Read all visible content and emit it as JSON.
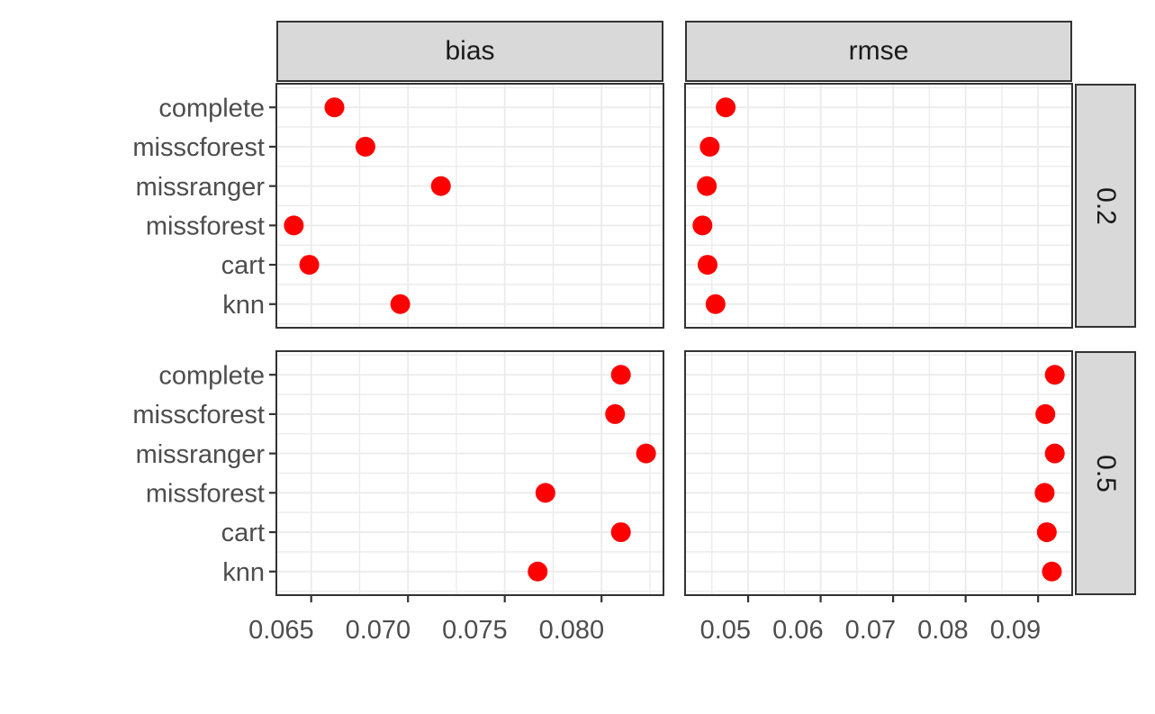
{
  "colors": {
    "point": "#FF0000",
    "strip_background": "#D9D9D9",
    "strip_text": "#1A1A1A",
    "panel_border": "#333333",
    "panel_background": "#FFFFFF",
    "gridline": "#EBEBEB",
    "axis_text": "#4D4D4D",
    "tick_mark": "#333333",
    "background": "#FFFFFF"
  },
  "chart_data": {
    "type": "scatter",
    "title": "",
    "legend": "none",
    "grid": "major+minor",
    "point_color": "#FF0000",
    "facet_cols": [
      "bias",
      "rmse"
    ],
    "facet_rows": [
      "0.2",
      "0.5"
    ],
    "categories": [
      "complete",
      "misscforest",
      "missranger",
      "missforest",
      "cart",
      "knn"
    ],
    "x_axes": [
      {
        "facet": "bias",
        "range": [
          0.0632,
          0.0832
        ],
        "ticks": [
          0.065,
          0.07,
          0.075,
          0.08
        ],
        "tick_labels": [
          "0.065",
          "0.070",
          "0.075",
          "0.080"
        ],
        "minor_breaks": [
          0.0675,
          0.0725,
          0.0775,
          0.0825
        ]
      },
      {
        "facet": "rmse",
        "range": [
          0.0413,
          0.0947
        ],
        "ticks": [
          0.05,
          0.06,
          0.07,
          0.08,
          0.09
        ],
        "tick_labels": [
          "0.05",
          "0.06",
          "0.07",
          "0.08",
          "0.09"
        ],
        "minor_breaks": [
          0.045,
          0.055,
          0.065,
          0.075,
          0.085
        ]
      }
    ],
    "panels": [
      {
        "facet_col": "bias",
        "facet_row": "0.2",
        "values": [
          0.0662,
          0.0678,
          0.0717,
          0.0641,
          0.0649,
          0.0696
        ]
      },
      {
        "facet_col": "rmse",
        "facet_row": "0.2",
        "values": [
          0.0469,
          0.0447,
          0.0443,
          0.0437,
          0.0444,
          0.0455
        ]
      },
      {
        "facet_col": "bias",
        "facet_row": "0.5",
        "values": [
          0.081,
          0.0807,
          0.0823,
          0.0771,
          0.081,
          0.0767
        ]
      },
      {
        "facet_col": "rmse",
        "facet_row": "0.5",
        "values": [
          0.0923,
          0.091,
          0.0923,
          0.0909,
          0.0912,
          0.0919
        ]
      }
    ]
  }
}
